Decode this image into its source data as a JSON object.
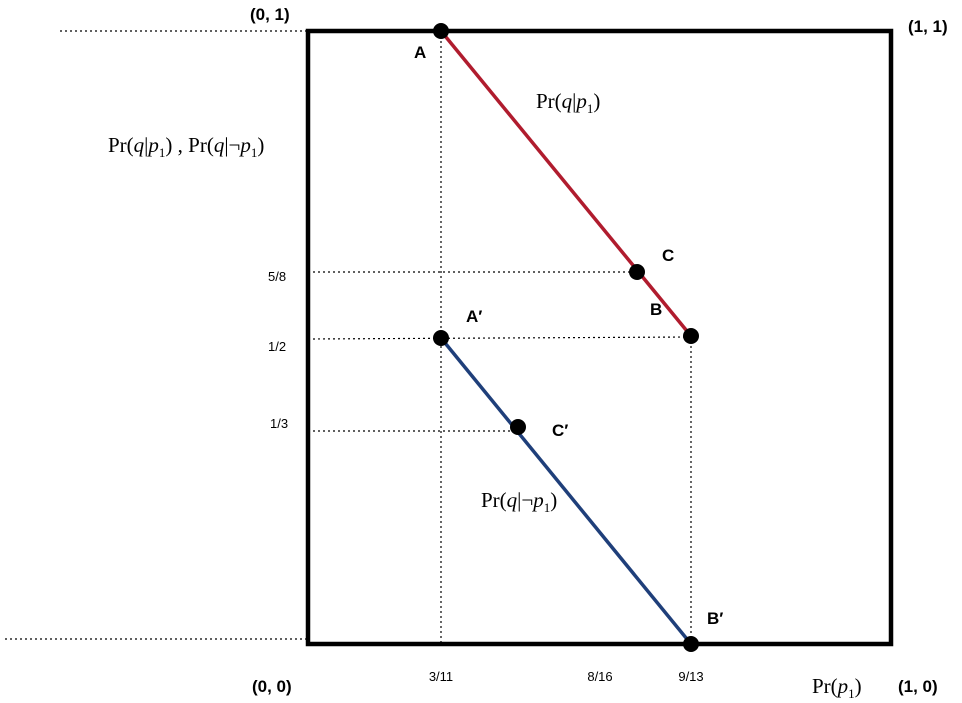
{
  "corners": {
    "top_left": "(0, 1)",
    "top_right": "(1, 1)",
    "bottom_left": "(0, 0)",
    "bottom_right": "(1, 0)"
  },
  "axis_labels": {
    "y": {
      "part1": "Pr(",
      "part1_q": "q",
      "part1_bar": "|",
      "part1_p": "p",
      "part1_sub": "1",
      "part1_close": ")",
      "sep": " , ",
      "part2": "Pr(",
      "part2_q": "q",
      "part2_bar": "|¬",
      "part2_p": "p",
      "part2_sub": "1",
      "part2_close": ")"
    },
    "x": {
      "pr": "Pr(",
      "p": "p",
      "sub": "1",
      "close": ")"
    }
  },
  "x_ticks": [
    "3/11",
    "8/16",
    "9/13"
  ],
  "y_ticks": [
    "5/8",
    "1/2",
    "1/3"
  ],
  "points": {
    "A": "A",
    "B": "B",
    "C": "C",
    "A_prime": "A′",
    "B_prime": "B′",
    "C_prime": "C′"
  },
  "line_labels": {
    "upper": {
      "pr": "Pr(",
      "q": "q",
      "bar": "|",
      "p": "p",
      "sub": "1",
      "close": ")"
    },
    "lower": {
      "pr": "Pr(",
      "q": "q",
      "bar": "|¬",
      "p": "p",
      "sub": "1",
      "close": ")"
    }
  },
  "colors": {
    "upper_line": "#b01c2e",
    "lower_line": "#1f3f7a",
    "frame": "#000000"
  }
}
